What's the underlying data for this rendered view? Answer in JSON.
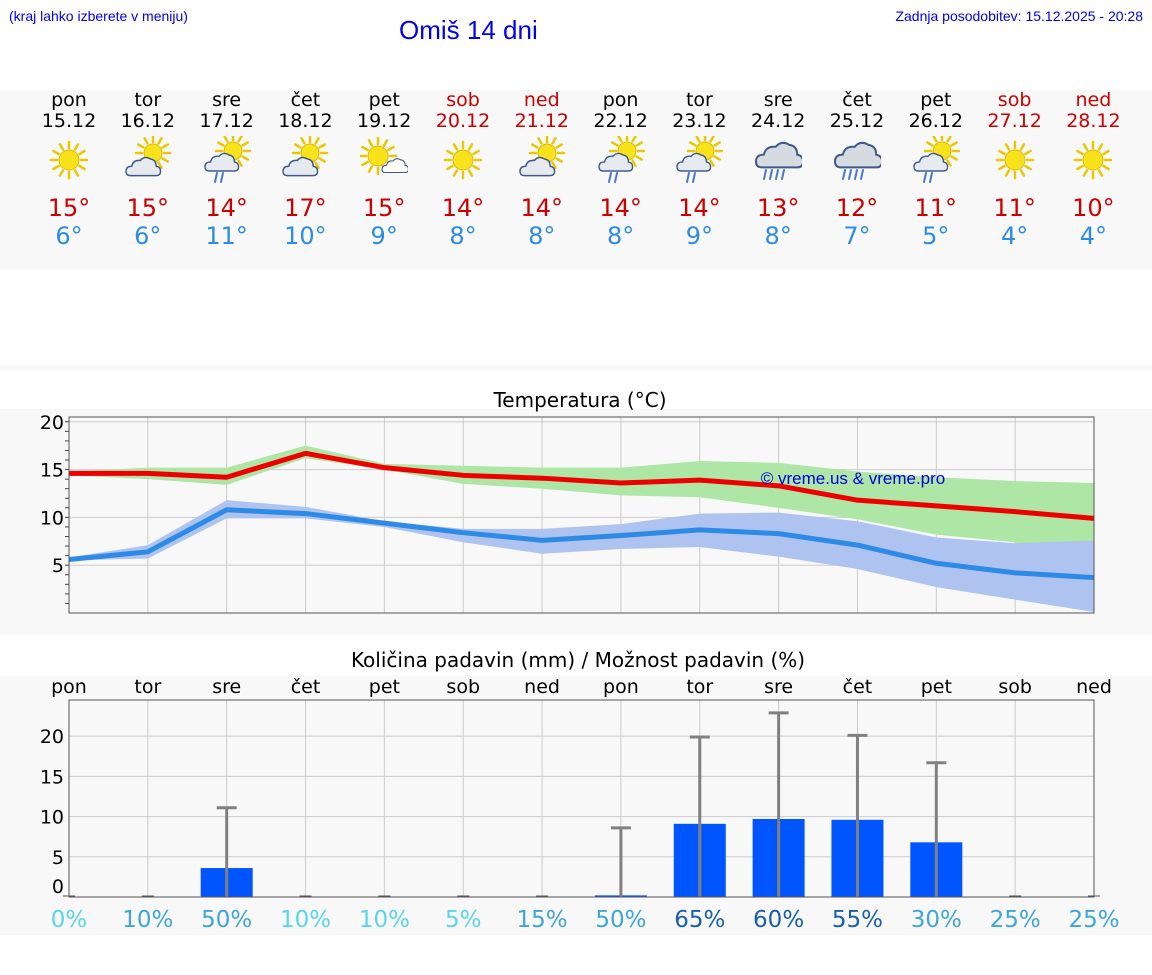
{
  "header": {
    "left_note": "(kraj lahko izberete v meniju)",
    "title": "Omiš 14 dni",
    "updated": "Zadnja posodobitev: 15.12.2025 - 20:28"
  },
  "colors": {
    "link_blue": "#0000ee",
    "max_line": "#ee0000",
    "min_line": "#2d8be6",
    "max_band": "#aee6a6",
    "min_band": "#aec3f0",
    "precip_bar": "#0055ff",
    "error_bar": "#808080"
  },
  "days": [
    {
      "name": "pon",
      "date": "15.12",
      "icon": "sun-icon",
      "tmax": "15°",
      "tmin": "6°",
      "weekend": false
    },
    {
      "name": "tor",
      "date": "16.12",
      "icon": "partly-cloudy-icon",
      "tmax": "15°",
      "tmin": "6°",
      "weekend": false
    },
    {
      "name": "sre",
      "date": "17.12",
      "icon": "sun-cloud-rain-icon",
      "tmax": "14°",
      "tmin": "11°",
      "weekend": false
    },
    {
      "name": "čet",
      "date": "18.12",
      "icon": "partly-cloudy-icon",
      "tmax": "17°",
      "tmin": "10°",
      "weekend": false
    },
    {
      "name": "pet",
      "date": "19.12",
      "icon": "mostly-sunny-icon",
      "tmax": "15°",
      "tmin": "9°",
      "weekend": false
    },
    {
      "name": "sob",
      "date": "20.12",
      "icon": "sun-icon",
      "tmax": "14°",
      "tmin": "8°",
      "weekend": true
    },
    {
      "name": "ned",
      "date": "21.12",
      "icon": "partly-cloudy-icon",
      "tmax": "14°",
      "tmin": "8°",
      "weekend": true
    },
    {
      "name": "pon",
      "date": "22.12",
      "icon": "sun-cloud-rain-icon",
      "tmax": "14°",
      "tmin": "8°",
      "weekend": false
    },
    {
      "name": "tor",
      "date": "23.12",
      "icon": "sun-cloud-rain-icon",
      "tmax": "14°",
      "tmin": "9°",
      "weekend": false
    },
    {
      "name": "sre",
      "date": "24.12",
      "icon": "rain-cloud-icon",
      "tmax": "13°",
      "tmin": "8°",
      "weekend": false
    },
    {
      "name": "čet",
      "date": "25.12",
      "icon": "rain-cloud-icon",
      "tmax": "12°",
      "tmin": "7°",
      "weekend": false
    },
    {
      "name": "pet",
      "date": "26.12",
      "icon": "sun-cloud-rain-icon",
      "tmax": "11°",
      "tmin": "5°",
      "weekend": false
    },
    {
      "name": "sob",
      "date": "27.12",
      "icon": "sun-icon",
      "tmax": "11°",
      "tmin": "4°",
      "weekend": true
    },
    {
      "name": "ned",
      "date": "28.12",
      "icon": "sun-icon",
      "tmax": "10°",
      "tmin": "4°",
      "weekend": true
    }
  ],
  "chart_data": [
    {
      "type": "line",
      "title": "Temperatura (°C)",
      "watermark": "© vreme.us & vreme.pro",
      "categories": [
        "15.12",
        "16.12",
        "17.12",
        "18.12",
        "19.12",
        "20.12",
        "21.12",
        "22.12",
        "23.12",
        "24.12",
        "25.12",
        "26.12",
        "27.12",
        "28.12"
      ],
      "ylim": [
        0,
        20.5
      ],
      "yticks": [
        "5",
        "10",
        "15",
        "20"
      ],
      "series": [
        {
          "name": "max",
          "values": [
            14.6,
            14.6,
            14.2,
            16.7,
            15.2,
            14.4,
            14.1,
            13.6,
            13.9,
            13.3,
            11.8,
            11.2,
            10.6,
            9.9
          ],
          "band_low": [
            14.4,
            14.0,
            13.4,
            16.2,
            15.0,
            13.5,
            13.0,
            12.3,
            12.1,
            11.0,
            9.8,
            8.2,
            7.4,
            6.4
          ],
          "band_high": [
            14.8,
            15.2,
            15.2,
            17.5,
            15.6,
            15.4,
            15.2,
            15.2,
            15.9,
            15.7,
            14.8,
            14.2,
            13.8,
            13.6
          ]
        },
        {
          "name": "min",
          "values": [
            5.6,
            6.4,
            10.8,
            10.4,
            9.4,
            8.4,
            7.6,
            8.1,
            8.7,
            8.3,
            7.1,
            5.2,
            4.2,
            3.7
          ],
          "band_low": [
            5.5,
            5.7,
            9.9,
            9.9,
            9.0,
            7.4,
            6.2,
            6.7,
            6.9,
            5.9,
            4.6,
            2.7,
            1.4,
            0.1
          ],
          "band_high": [
            5.8,
            7.1,
            11.8,
            11.1,
            9.6,
            8.8,
            8.8,
            9.3,
            10.4,
            10.5,
            9.6,
            7.9,
            7.3,
            7.6
          ],
          "extra_band_low": [
            null,
            null,
            null,
            null,
            null,
            null,
            null,
            null,
            null,
            null,
            null,
            null,
            7.2,
            7.5
          ],
          "extra_band_high": [
            null,
            null,
            null,
            null,
            null,
            null,
            null,
            null,
            null,
            null,
            null,
            null,
            7.4,
            6.3
          ]
        }
      ]
    },
    {
      "type": "bar",
      "title": "Količina padavin (mm) / Možnost padavin (%)",
      "categories": [
        "pon",
        "tor",
        "sre",
        "čet",
        "pet",
        "sob",
        "ned",
        "pon",
        "tor",
        "sre",
        "čet",
        "pet",
        "sob",
        "ned"
      ],
      "ylim": [
        0,
        24.5
      ],
      "yticks": [
        "0",
        "5",
        "10",
        "15",
        "20"
      ],
      "values": [
        0,
        0,
        3.6,
        0,
        0,
        0,
        0,
        0.2,
        9.1,
        9.7,
        9.6,
        6.8,
        0,
        0
      ],
      "error_high": [
        0,
        0,
        11.1,
        0,
        0,
        0,
        0,
        8.6,
        19.9,
        22.9,
        20.1,
        16.7,
        0,
        0
      ],
      "probability": [
        "0%",
        "10%",
        "50%",
        "10%",
        "10%",
        "5%",
        "15%",
        "50%",
        "65%",
        "60%",
        "55%",
        "30%",
        "25%",
        "25%"
      ],
      "probability_colors": [
        "#5bd5ec",
        "#3fa6d8",
        "#3fa6d8",
        "#5bd5ec",
        "#5bd5ec",
        "#5bd5ec",
        "#3fa6d8",
        "#3fa6d8",
        "#1a5faa",
        "#1a5faa",
        "#1a5faa",
        "#3fa6d8",
        "#3fa6d8",
        "#3fa6d8"
      ]
    }
  ]
}
